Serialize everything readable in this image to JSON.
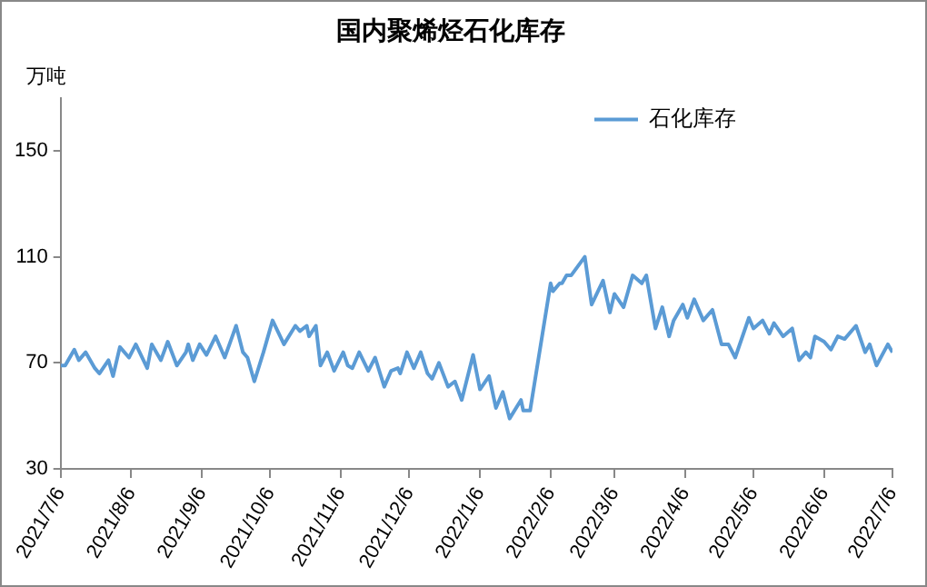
{
  "chart_data": {
    "type": "line",
    "title": "国内聚烯烃石化库存",
    "ylabel": "万吨",
    "x": [
      "2021-07-06",
      "2021-07-08",
      "2021-07-12",
      "2021-07-14",
      "2021-07-17",
      "2021-07-21",
      "2021-07-23",
      "2021-07-27",
      "2021-07-29",
      "2021-08-01",
      "2021-08-05",
      "2021-08-08",
      "2021-08-13",
      "2021-08-15",
      "2021-08-19",
      "2021-08-22",
      "2021-08-26",
      "2021-08-30",
      "2021-08-31",
      "2021-09-02",
      "2021-09-05",
      "2021-09-08",
      "2021-09-12",
      "2021-09-16",
      "2021-09-21",
      "2021-09-24",
      "2021-09-26",
      "2021-09-29",
      "2021-10-03",
      "2021-10-07",
      "2021-10-12",
      "2021-10-17",
      "2021-10-19",
      "2021-10-22",
      "2021-10-23",
      "2021-10-26",
      "2021-10-28",
      "2021-10-31",
      "2021-11-03",
      "2021-11-07",
      "2021-11-09",
      "2021-11-11",
      "2021-11-14",
      "2021-11-18",
      "2021-11-21",
      "2021-11-25",
      "2021-11-28",
      "2021-12-01",
      "2021-12-02",
      "2021-12-05",
      "2021-12-08",
      "2021-12-11",
      "2021-12-14",
      "2021-12-16",
      "2021-12-19",
      "2021-12-23",
      "2021-12-26",
      "2021-12-29",
      "2022-01-03",
      "2022-01-06",
      "2022-01-10",
      "2022-01-13",
      "2022-01-16",
      "2022-01-19",
      "2022-01-24",
      "2022-01-25",
      "2022-01-28",
      "2022-02-06",
      "2022-02-07",
      "2022-02-10",
      "2022-02-11",
      "2022-02-13",
      "2022-02-15",
      "2022-02-21",
      "2022-02-24",
      "2022-03-01",
      "2022-03-04",
      "2022-03-06",
      "2022-03-10",
      "2022-03-14",
      "2022-03-18",
      "2022-03-20",
      "2022-03-24",
      "2022-03-27",
      "2022-03-30",
      "2022-04-01",
      "2022-04-05",
      "2022-04-07",
      "2022-04-10",
      "2022-04-14",
      "2022-04-18",
      "2022-04-22",
      "2022-04-25",
      "2022-04-28",
      "2022-05-04",
      "2022-05-06",
      "2022-05-10",
      "2022-05-13",
      "2022-05-15",
      "2022-05-19",
      "2022-05-23",
      "2022-05-26",
      "2022-05-29",
      "2022-05-31",
      "2022-06-02",
      "2022-06-06",
      "2022-06-09",
      "2022-06-12",
      "2022-06-15",
      "2022-06-20",
      "2022-06-24",
      "2022-06-26",
      "2022-06-29",
      "2022-07-04",
      "2022-07-06"
    ],
    "series": [
      {
        "name": "石化库存",
        "color": "#5b9bd5",
        "values": [
          69,
          69,
          75,
          71,
          74,
          68,
          66,
          71,
          65,
          76,
          72,
          77,
          68,
          77,
          71,
          78,
          69,
          74,
          77,
          71,
          77,
          73,
          80,
          72,
          84,
          74,
          72,
          63,
          74,
          86,
          77,
          84,
          82,
          84,
          80,
          84,
          69,
          74,
          67,
          74,
          69,
          68,
          74,
          67,
          72,
          61,
          67,
          68,
          66,
          74,
          68,
          74,
          66,
          64,
          70,
          61,
          63,
          56,
          73,
          60,
          65,
          53,
          59,
          49,
          56,
          52,
          52,
          100,
          97,
          100,
          100,
          103,
          103,
          110,
          92,
          101,
          89,
          96,
          91,
          103,
          100,
          103,
          83,
          91,
          80,
          86,
          92,
          87,
          94,
          86,
          90,
          77,
          77,
          72,
          87,
          83,
          86,
          81,
          85,
          80,
          83,
          71,
          74,
          72,
          80,
          78,
          75,
          80,
          79,
          84,
          74,
          77,
          69,
          77,
          74
        ]
      }
    ],
    "xlim": [
      "2021-07-06",
      "2022-07-06"
    ],
    "xticks": [
      {
        "value": "2021-07-06",
        "label": "2021/7/6"
      },
      {
        "value": "2021-08-06",
        "label": "2021/8/6"
      },
      {
        "value": "2021-09-06",
        "label": "2021/9/6"
      },
      {
        "value": "2021-10-06",
        "label": "2021/10/6"
      },
      {
        "value": "2021-11-06",
        "label": "2021/11/6"
      },
      {
        "value": "2021-12-06",
        "label": "2021/12/6"
      },
      {
        "value": "2022-01-06",
        "label": "2022/1/6"
      },
      {
        "value": "2022-02-06",
        "label": "2022/2/6"
      },
      {
        "value": "2022-03-06",
        "label": "2022/3/6"
      },
      {
        "value": "2022-04-06",
        "label": "2022/4/6"
      },
      {
        "value": "2022-05-06",
        "label": "2022/5/6"
      },
      {
        "value": "2022-06-06",
        "label": "2022/6/6"
      },
      {
        "value": "2022-07-06",
        "label": "2022/7/6"
      }
    ],
    "ylim": [
      30,
      170
    ],
    "yticks": [
      30,
      70,
      110,
      150
    ],
    "grid": false,
    "legend": "top right",
    "marker": "none",
    "line_style": "solid"
  }
}
